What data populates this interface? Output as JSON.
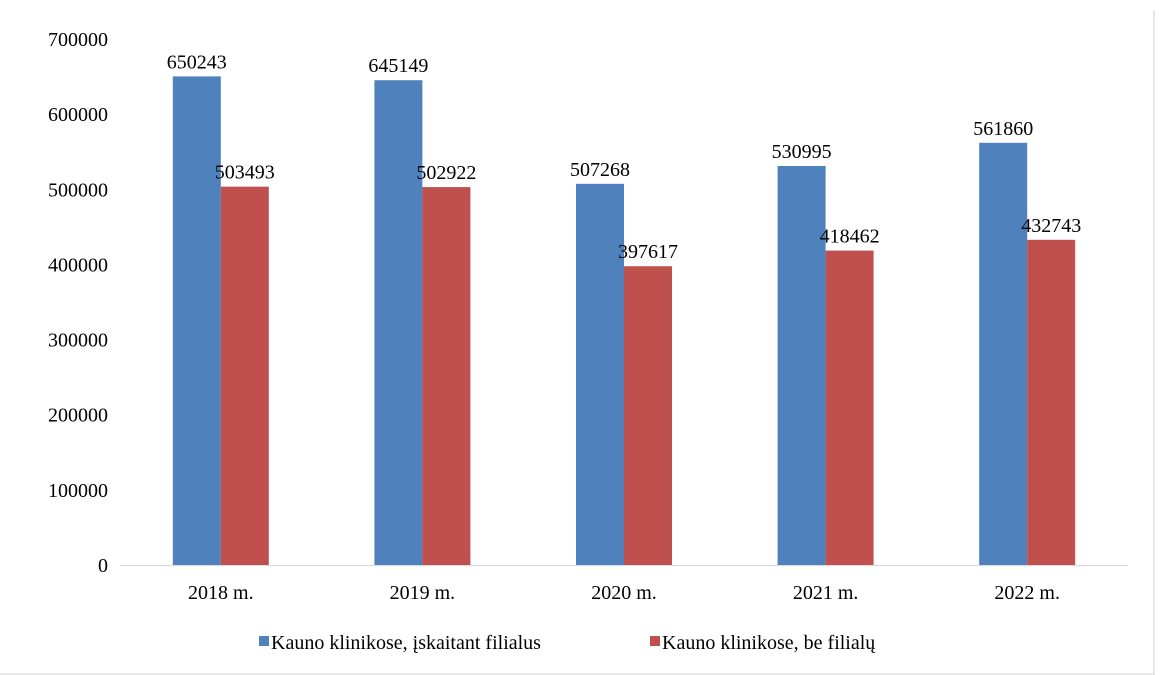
{
  "chart_data": {
    "type": "bar",
    "title": "",
    "xlabel": "",
    "ylabel": "",
    "categories": [
      "2018 m.",
      "2019 m.",
      "2020 m.",
      "2021 m.",
      "2022 m."
    ],
    "series": [
      {
        "name": "Kauno klinikose, įskaitant filialus",
        "color": "#4f81bd",
        "values": [
          650243,
          645149,
          507268,
          530995,
          561860
        ]
      },
      {
        "name": "Kauno klinikose, be filialų",
        "color": "#c0504d",
        "values": [
          503493,
          502922,
          397617,
          418462,
          432743
        ]
      }
    ],
    "ylim": [
      0,
      700000
    ],
    "yticks": [
      0,
      100000,
      200000,
      300000,
      400000,
      500000,
      600000,
      700000
    ],
    "grid": false,
    "data_labels": true,
    "legend_position": "bottom"
  }
}
